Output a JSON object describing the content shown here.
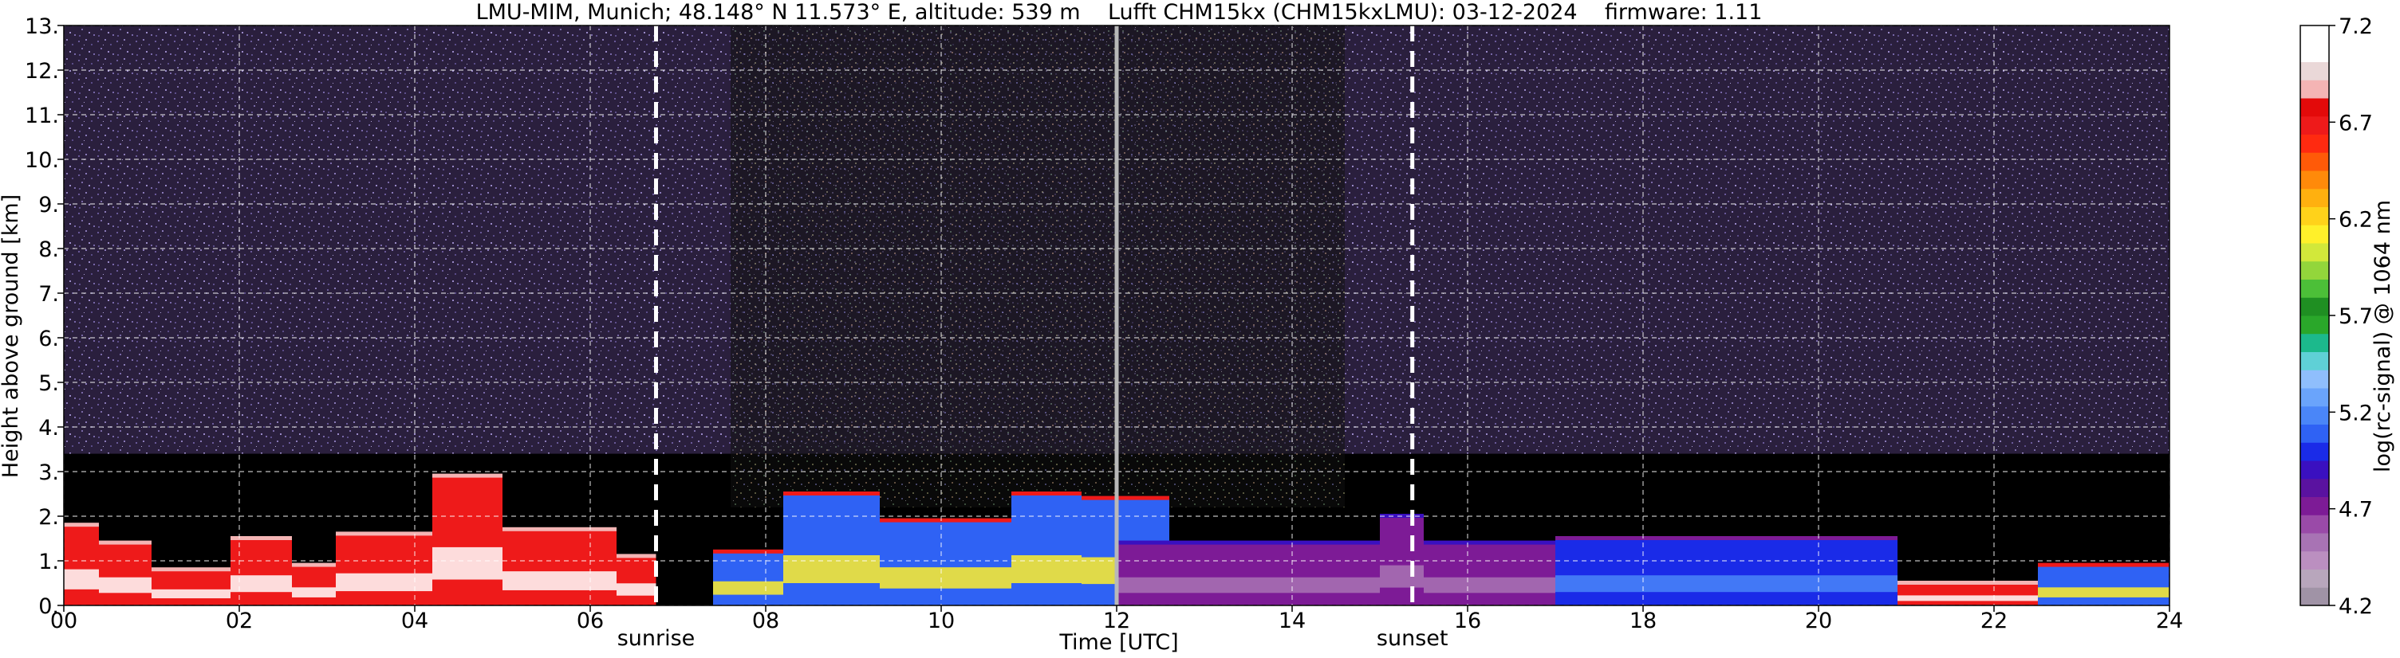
{
  "chart_data": {
    "type": "heatmap",
    "title": "LMU-MIM, Munich; 48.148° N 11.573° E, altitude: 539 m    Lufft CHM15kx (CHM15kxLMU): 03-12-2024    firmware: 1.11",
    "xlabel": "Time [UTC]",
    "ylabel": "Height above ground [km]",
    "xlim": [
      0,
      24
    ],
    "ylim": [
      0,
      13
    ],
    "xticks": [
      "00",
      "02",
      "04",
      "06",
      "08",
      "10",
      "12",
      "14",
      "16",
      "18",
      "20",
      "22",
      "24"
    ],
    "yticks": [
      "0.",
      "1.",
      "2.",
      "3.",
      "4.",
      "5.",
      "6.",
      "7.",
      "8.",
      "9.",
      "10.",
      "11.",
      "12.",
      "13."
    ],
    "grid": true,
    "colorbar": {
      "label": "log(rc-signal) @ 1064 nm",
      "range": [
        4.2,
        7.2
      ],
      "ticks": [
        "4.2",
        "4.7",
        "5.2",
        "5.7",
        "6.2",
        "6.7",
        "7.2"
      ],
      "colors": [
        "#a093a6",
        "#b8a6bc",
        "#bb8fc0",
        "#a873b4",
        "#9a4aa8",
        "#7d1b96",
        "#5a12a0",
        "#3a10c0",
        "#1a2be8",
        "#2f62f4",
        "#4a86f8",
        "#6aa4fb",
        "#8fbefc",
        "#5fd0d6",
        "#1cb98c",
        "#2aa72a",
        "#1f8f22",
        "#4cbf38",
        "#93d63b",
        "#d2e83a",
        "#fff02a",
        "#ffd21a",
        "#ffb00f",
        "#ff8a0a",
        "#ff5a08",
        "#ff2a10",
        "#ee1a1a",
        "#e30a0a",
        "#f4b4b4",
        "#ead8d8",
        "#ffffff",
        "#ffffff"
      ]
    },
    "annotations": [
      {
        "text": "sunrise",
        "x": 6.75
      },
      {
        "text": "sunset",
        "x": 15.37
      }
    ],
    "markers": [
      {
        "type": "dashed-line",
        "x": 6.75
      },
      {
        "type": "dashed-line",
        "x": 15.37
      },
      {
        "type": "gray-line",
        "x": 12.0
      }
    ],
    "background_colors": {
      "upper_noise": "#2a1f3d",
      "clear_sky": "#000000"
    },
    "layers": [
      {
        "t0": 0.0,
        "t1": 0.4,
        "top": 1.8,
        "class": "aerosol-red"
      },
      {
        "t0": 0.4,
        "t1": 1.0,
        "top": 1.4,
        "class": "aerosol-red"
      },
      {
        "t0": 1.0,
        "t1": 1.9,
        "top": 0.8,
        "class": "aerosol-red"
      },
      {
        "t0": 1.9,
        "t1": 2.6,
        "top": 1.5,
        "class": "aerosol-red"
      },
      {
        "t0": 2.6,
        "t1": 3.1,
        "top": 0.9,
        "class": "aerosol-red"
      },
      {
        "t0": 3.1,
        "t1": 4.2,
        "top": 1.6,
        "class": "aerosol-red"
      },
      {
        "t0": 4.2,
        "t1": 5.0,
        "top": 2.9,
        "class": "aerosol-red"
      },
      {
        "t0": 5.0,
        "t1": 6.3,
        "top": 1.7,
        "class": "aerosol-red"
      },
      {
        "t0": 6.3,
        "t1": 6.75,
        "top": 1.1,
        "class": "aerosol-red"
      },
      {
        "t0": 7.4,
        "t1": 8.2,
        "top": 1.2,
        "class": "aerosol-mixed"
      },
      {
        "t0": 8.2,
        "t1": 9.3,
        "top": 2.5,
        "class": "aerosol-mixed"
      },
      {
        "t0": 9.3,
        "t1": 10.8,
        "top": 1.9,
        "class": "aerosol-mixed"
      },
      {
        "t0": 10.8,
        "t1": 11.6,
        "top": 2.5,
        "class": "aerosol-mixed"
      },
      {
        "t0": 11.6,
        "t1": 12.6,
        "top": 2.4,
        "class": "aerosol-mixed"
      },
      {
        "t0": 12.0,
        "t1": 17.0,
        "top": 1.4,
        "class": "aerosol-purple"
      },
      {
        "t0": 15.0,
        "t1": 15.5,
        "top": 2.0,
        "class": "aerosol-purple"
      },
      {
        "t0": 17.0,
        "t1": 20.9,
        "top": 1.5,
        "class": "aerosol-blue"
      },
      {
        "t0": 20.9,
        "t1": 22.5,
        "top": 0.5,
        "class": "aerosol-red"
      },
      {
        "t0": 22.5,
        "t1": 24.0,
        "top": 0.9,
        "class": "aerosol-mixed"
      }
    ]
  }
}
